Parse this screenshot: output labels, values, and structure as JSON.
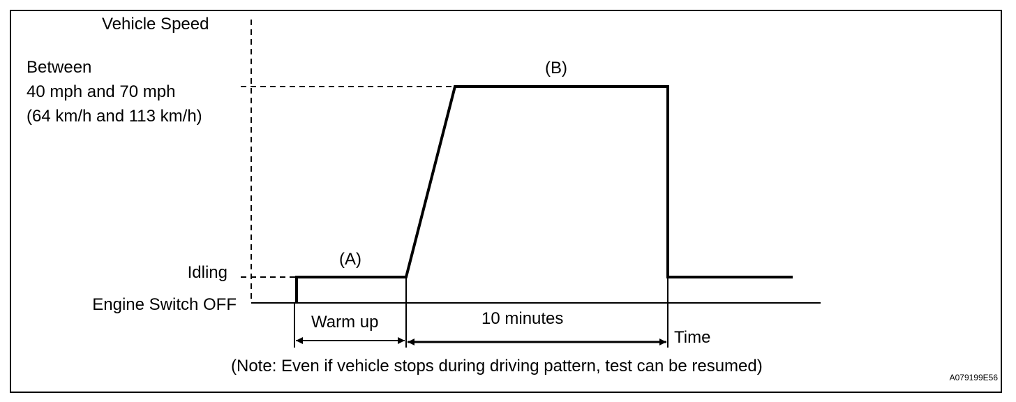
{
  "diagram": {
    "y_axis_label": "Vehicle Speed",
    "speed_range": {
      "line1": "Between",
      "line2": "40 mph and 70 mph",
      "line3": "(64 km/h and 113 km/h)"
    },
    "idling_label": "Idling",
    "engine_off_label": "Engine Switch OFF",
    "segment_a_label": "(A)",
    "segment_b_label": "(B)",
    "warm_up_label": "Warm up",
    "duration_label": "10 minutes",
    "x_axis_label": "Time",
    "note": "(Note: Even if vehicle stops during driving pattern, test can be resumed)",
    "figure_id": "A079199E56"
  }
}
